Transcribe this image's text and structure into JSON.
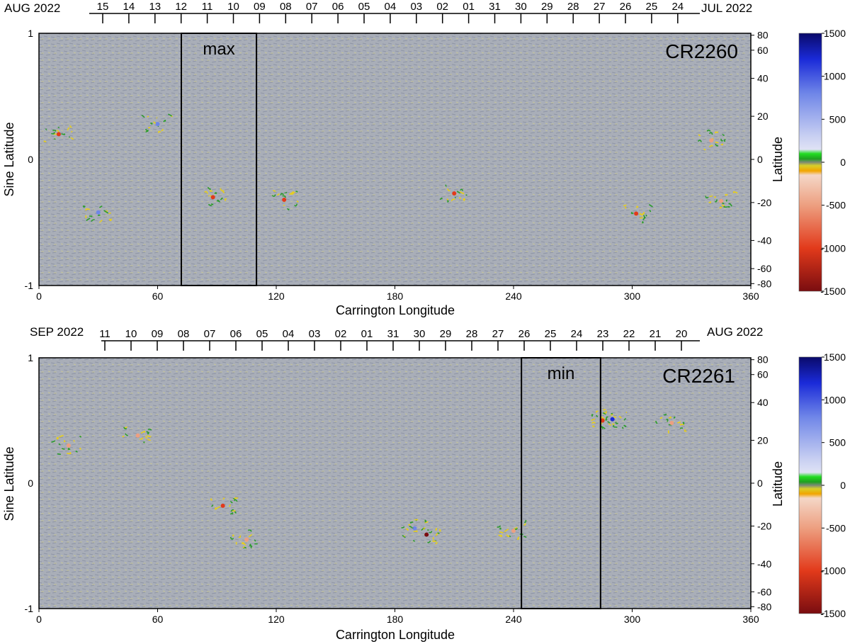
{
  "charts": [
    {
      "id": "CR2260",
      "cr_label": "CR2260",
      "date_left": "AUG 2022",
      "date_right": "JUL 2022",
      "day_ticks": [
        "15",
        "14",
        "13",
        "12",
        "11",
        "10",
        "09",
        "08",
        "07",
        "06",
        "05",
        "04",
        "03",
        "02",
        "01",
        "31",
        "30",
        "29",
        "28",
        "27",
        "26",
        "25",
        "24"
      ],
      "box_label": "max",
      "box_lon_range": [
        72,
        110
      ]
    },
    {
      "id": "CR2261",
      "cr_label": "CR2261",
      "date_left": "SEP 2022",
      "date_right": "AUG 2022",
      "day_ticks": [
        "11",
        "10",
        "09",
        "08",
        "07",
        "06",
        "05",
        "04",
        "03",
        "02",
        "01",
        "31",
        "30",
        "29",
        "28",
        "27",
        "26",
        "25",
        "24",
        "23",
        "22",
        "21",
        "20"
      ],
      "box_label": "min",
      "box_lon_range": [
        244,
        284
      ]
    }
  ],
  "axes": {
    "xlabel": "Carrington Longitude",
    "x_ticks": [
      "0",
      "60",
      "120",
      "180",
      "240",
      "300",
      "360"
    ],
    "ylabel_left": "Sine Latitude",
    "y_left_ticks": [
      "1",
      "0",
      "-1"
    ],
    "ylabel_right": "Latitude",
    "y_right_ticks": [
      "80",
      "60",
      "40",
      "20",
      "0",
      "-20",
      "-40",
      "-60",
      "-80"
    ]
  },
  "colorbar": {
    "ticks": [
      "1500",
      "1000",
      "500",
      "0",
      "-500",
      "-1000",
      "-1500"
    ],
    "stops": [
      {
        "v": 1500,
        "color": "#0a0a6a"
      },
      {
        "v": 1200,
        "color": "#1a2ad8"
      },
      {
        "v": 800,
        "color": "#6f86e8"
      },
      {
        "v": 300,
        "color": "#c9d0f2"
      },
      {
        "v": 150,
        "color": "#dfe2f5"
      },
      {
        "v": 100,
        "color": "#22dd22"
      },
      {
        "v": 40,
        "color": "#1fa11f"
      },
      {
        "v": 0,
        "color": "#7d8a76"
      },
      {
        "v": -40,
        "color": "#d8cf2a"
      },
      {
        "v": -100,
        "color": "#f2a500"
      },
      {
        "v": -150,
        "color": "#f4d7c7"
      },
      {
        "v": -500,
        "color": "#ed9f80"
      },
      {
        "v": -1000,
        "color": "#e23a1b"
      },
      {
        "v": -1500,
        "color": "#7a0d10"
      }
    ]
  },
  "chart_data": [
    {
      "type": "heatmap",
      "title": "CR2260",
      "xlabel": "Carrington Longitude",
      "ylabel": "Sine Latitude",
      "xlim": [
        0,
        360
      ],
      "ylim": [
        -1,
        1
      ],
      "colorbar_range": [
        -1500,
        1500
      ],
      "highlight_box": {
        "label": "max",
        "x": [
          72,
          110
        ]
      },
      "active_regions": [
        {
          "lon": 10,
          "sinlat": 0.2,
          "value": -800
        },
        {
          "lon": 30,
          "sinlat": -0.42,
          "value": 900
        },
        {
          "lon": 60,
          "sinlat": 0.28,
          "value": 700
        },
        {
          "lon": 88,
          "sinlat": -0.3,
          "value": -1200
        },
        {
          "lon": 124,
          "sinlat": -0.32,
          "value": -1000
        },
        {
          "lon": 210,
          "sinlat": -0.27,
          "value": -900
        },
        {
          "lon": 302,
          "sinlat": -0.43,
          "value": -1000
        },
        {
          "lon": 345,
          "sinlat": -0.33,
          "value": -600
        },
        {
          "lon": 340,
          "sinlat": 0.15,
          "value": -400
        }
      ]
    },
    {
      "type": "heatmap",
      "title": "CR2261",
      "xlabel": "Carrington Longitude",
      "ylabel": "Sine Latitude",
      "xlim": [
        0,
        360
      ],
      "ylim": [
        -1,
        1
      ],
      "colorbar_range": [
        -1500,
        1500
      ],
      "highlight_box": {
        "label": "min",
        "x": [
          244,
          284
        ]
      },
      "active_regions": [
        {
          "lon": 15,
          "sinlat": 0.3,
          "value": -600
        },
        {
          "lon": 50,
          "sinlat": 0.38,
          "value": -700
        },
        {
          "lon": 93,
          "sinlat": -0.18,
          "value": -1200
        },
        {
          "lon": 105,
          "sinlat": -0.45,
          "value": -500
        },
        {
          "lon": 190,
          "sinlat": -0.36,
          "value": 1000
        },
        {
          "lon": 196,
          "sinlat": -0.41,
          "value": -1300
        },
        {
          "lon": 240,
          "sinlat": -0.38,
          "value": -500
        },
        {
          "lon": 290,
          "sinlat": 0.51,
          "value": 1100
        },
        {
          "lon": 285,
          "sinlat": 0.5,
          "value": -1000
        },
        {
          "lon": 320,
          "sinlat": 0.48,
          "value": -400
        }
      ]
    }
  ]
}
